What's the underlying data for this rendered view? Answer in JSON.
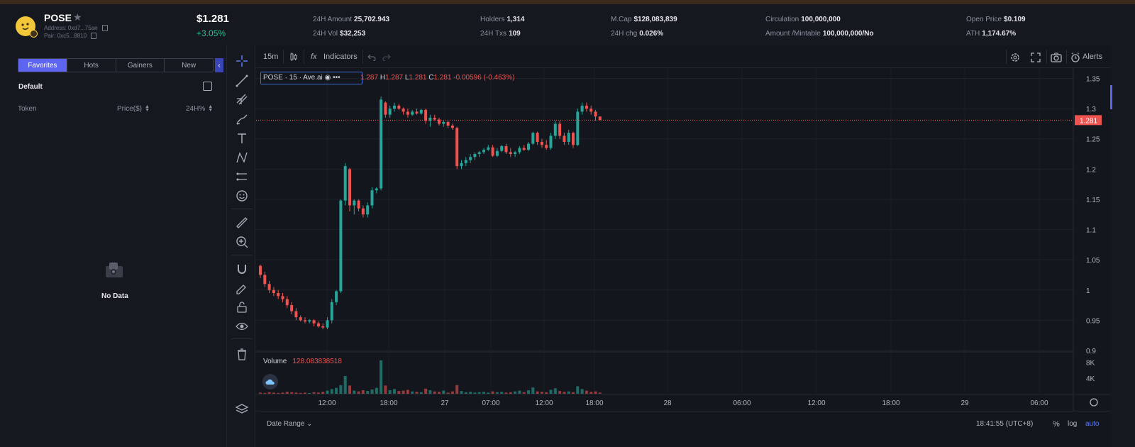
{
  "token": {
    "symbol": "POSE",
    "address": "Address: 0xd7...75ae",
    "pair": "Pair: 0xc5...8810",
    "price": "$1.281",
    "change": "+3.05%"
  },
  "stats": {
    "amount_24h": {
      "label": "24H Amount",
      "value": "25,702.943"
    },
    "vol_24h": {
      "label": "24H Vol",
      "value": "$32,253"
    },
    "holders": {
      "label": "Holders",
      "value": "1,314"
    },
    "txs_24h": {
      "label": "24H Txs",
      "value": "109"
    },
    "mcap": {
      "label": "M.Cap",
      "value": "$128,083,839"
    },
    "chg_24h": {
      "label": "24H chg",
      "value": "0.026%"
    },
    "circulation": {
      "label": "Circulation",
      "value": "100,000,000"
    },
    "mintable": {
      "label": "Amount /Mintable",
      "value": "100,000,000/No"
    },
    "open_price": {
      "label": "Open Price",
      "value": "$0.109"
    },
    "ath": {
      "label": "ATH",
      "value": "1,174.67%"
    }
  },
  "sidebar": {
    "tabs": [
      {
        "label": "Favorites",
        "active": true
      },
      {
        "label": "Hots",
        "active": false
      },
      {
        "label": "Gainers",
        "active": false
      },
      {
        "label": "New",
        "active": false
      }
    ],
    "group_title": "Default",
    "columns": {
      "token": "Token",
      "price": "Price($)",
      "change": "24H%"
    },
    "empty_text": "No Data"
  },
  "chart_toolbar": {
    "interval": "15m",
    "indicators": "Indicators",
    "alerts": "Alerts"
  },
  "legend": {
    "symbol": "POSE",
    "interval": "15",
    "source": "Ave.ai",
    "open_label": "O",
    "open_value": "1.287",
    "high_label": "H",
    "high_value": "1.287",
    "low_label": "L",
    "low_value": "1.281",
    "close_label": "C",
    "close_value": "1.281",
    "change": "-0.00596 (-0.463%)"
  },
  "volume": {
    "label": "Volume",
    "value": "128.083838518"
  },
  "bottom": {
    "date_range": "Date Range",
    "clock": "18:41:55 (UTC+8)",
    "percent": "%",
    "log": "log",
    "auto": "auto"
  },
  "colors": {
    "up": "#26a69a",
    "down": "#ef5350",
    "accent": "#5d64f0",
    "background": "#14161d"
  },
  "chart_data": {
    "type": "candlestick",
    "current_price": 1.281,
    "y_ticks": [
      0.9,
      0.95,
      1,
      1.05,
      1.1,
      1.15,
      1.2,
      1.25,
      1.3,
      1.35
    ],
    "y_tick_labels": [
      "0.9",
      "0.95",
      "1",
      "1.05",
      "1.1",
      "1.15",
      "1.2",
      "1.25",
      "1.3",
      "1.35"
    ],
    "ylim": [
      0.9,
      1.36
    ],
    "x_tick_labels": [
      "12:00",
      "18:00",
      "27",
      "07:00",
      "12:00",
      "18:00",
      "28",
      "06:00",
      "12:00",
      "18:00",
      "29",
      "06:00"
    ],
    "volume_tick_labels": [
      "8K",
      "4K"
    ],
    "grid": true,
    "candles": [
      [
        1.04,
        1.042,
        1.02,
        1.025
      ],
      [
        1.025,
        1.03,
        1.005,
        1.01
      ],
      [
        1.01,
        1.015,
        0.995,
        1.0
      ],
      [
        1.0,
        1.005,
        0.99,
        0.995
      ],
      [
        0.995,
        1.0,
        0.985,
        0.99
      ],
      [
        0.99,
        0.995,
        0.98,
        0.985
      ],
      [
        0.985,
        0.99,
        0.97,
        0.975
      ],
      [
        0.975,
        0.98,
        0.96,
        0.965
      ],
      [
        0.965,
        0.97,
        0.95,
        0.955
      ],
      [
        0.955,
        0.958,
        0.948,
        0.95
      ],
      [
        0.95,
        0.955,
        0.945,
        0.948
      ],
      [
        0.948,
        0.952,
        0.945,
        0.95
      ],
      [
        0.95,
        0.952,
        0.94,
        0.945
      ],
      [
        0.945,
        0.948,
        0.938,
        0.94
      ],
      [
        0.94,
        0.945,
        0.935,
        0.938
      ],
      [
        0.938,
        0.955,
        0.935,
        0.95
      ],
      [
        0.95,
        0.985,
        0.945,
        0.98
      ],
      [
        0.98,
        1.0,
        0.975,
        0.998
      ],
      [
        0.998,
        1.15,
        0.995,
        1.148
      ],
      [
        1.148,
        1.21,
        1.14,
        1.205
      ],
      [
        1.2,
        1.202,
        1.13,
        1.14
      ],
      [
        1.14,
        1.15,
        1.125,
        1.148
      ],
      [
        1.148,
        1.15,
        1.13,
        1.135
      ],
      [
        1.135,
        1.14,
        1.12,
        1.125
      ],
      [
        1.125,
        1.145,
        1.12,
        1.14
      ],
      [
        1.14,
        1.17,
        1.135,
        1.165
      ],
      [
        1.165,
        1.17,
        1.16,
        1.168
      ],
      [
        1.168,
        1.32,
        1.165,
        1.315
      ],
      [
        1.31,
        1.312,
        1.285,
        1.29
      ],
      [
        1.29,
        1.305,
        1.285,
        1.3
      ],
      [
        1.3,
        1.31,
        1.295,
        1.305
      ],
      [
        1.305,
        1.308,
        1.298,
        1.3
      ],
      [
        1.3,
        1.302,
        1.29,
        1.295
      ],
      [
        1.295,
        1.3,
        1.285,
        1.29
      ],
      [
        1.29,
        1.298,
        1.288,
        1.295
      ],
      [
        1.295,
        1.3,
        1.29,
        1.292
      ],
      [
        1.292,
        1.3,
        1.29,
        1.298
      ],
      [
        1.298,
        1.3,
        1.275,
        1.28
      ],
      [
        1.28,
        1.29,
        1.27,
        1.285
      ],
      [
        1.285,
        1.29,
        1.28,
        1.282
      ],
      [
        1.282,
        1.285,
        1.272,
        1.275
      ],
      [
        1.275,
        1.28,
        1.27,
        1.278
      ],
      [
        1.278,
        1.28,
        1.268,
        1.272
      ],
      [
        1.272,
        1.275,
        1.265,
        1.268
      ],
      [
        1.268,
        1.27,
        1.2,
        1.205
      ],
      [
        1.205,
        1.215,
        1.2,
        1.21
      ],
      [
        1.21,
        1.22,
        1.205,
        1.215
      ],
      [
        1.215,
        1.225,
        1.21,
        1.22
      ],
      [
        1.22,
        1.228,
        1.215,
        1.225
      ],
      [
        1.225,
        1.23,
        1.22,
        1.228
      ],
      [
        1.228,
        1.235,
        1.225,
        1.232
      ],
      [
        1.232,
        1.24,
        1.23,
        1.236
      ],
      [
        1.236,
        1.24,
        1.22,
        1.222
      ],
      [
        1.222,
        1.235,
        1.22,
        1.23
      ],
      [
        1.23,
        1.24,
        1.228,
        1.238
      ],
      [
        1.238,
        1.242,
        1.225,
        1.228
      ],
      [
        1.228,
        1.235,
        1.22,
        1.225
      ],
      [
        1.225,
        1.23,
        1.22,
        1.228
      ],
      [
        1.228,
        1.238,
        1.225,
        1.235
      ],
      [
        1.235,
        1.24,
        1.23,
        1.232
      ],
      [
        1.232,
        1.245,
        1.23,
        1.242
      ],
      [
        1.242,
        1.262,
        1.24,
        1.26
      ],
      [
        1.26,
        1.262,
        1.24,
        1.245
      ],
      [
        1.245,
        1.25,
        1.235,
        1.24
      ],
      [
        1.24,
        1.248,
        1.232,
        1.235
      ],
      [
        1.235,
        1.26,
        1.232,
        1.255
      ],
      [
        1.255,
        1.28,
        1.25,
        1.275
      ],
      [
        1.275,
        1.28,
        1.25,
        1.255
      ],
      [
        1.255,
        1.26,
        1.24,
        1.245
      ],
      [
        1.245,
        1.265,
        1.24,
        1.26
      ],
      [
        1.26,
        1.262,
        1.235,
        1.24
      ],
      [
        1.24,
        1.3,
        1.238,
        1.295
      ],
      [
        1.295,
        1.31,
        1.29,
        1.305
      ],
      [
        1.305,
        1.31,
        1.295,
        1.3
      ],
      [
        1.3,
        1.305,
        1.29,
        1.295
      ],
      [
        1.295,
        1.298,
        1.28,
        1.287
      ],
      [
        1.287,
        1.287,
        1.281,
        1.281
      ]
    ],
    "volumes": [
      0.3,
      0.2,
      0.4,
      0.3,
      0.2,
      0.3,
      0.5,
      0.4,
      0.3,
      0.2,
      0.3,
      0.2,
      0.4,
      0.3,
      0.5,
      0.8,
      1.2,
      1.5,
      2.2,
      4.5,
      2.1,
      0.8,
      0.6,
      0.9,
      0.7,
      1.1,
      1.5,
      8.5,
      2.1,
      0.9,
      1.2,
      0.7,
      0.8,
      1.0,
      0.6,
      0.5,
      0.4,
      1.3,
      0.9,
      0.6,
      0.5,
      0.8,
      0.3,
      0.6,
      2.2,
      0.7,
      0.4,
      0.5,
      0.3,
      0.4,
      0.5,
      0.3,
      0.6,
      0.4,
      0.5,
      0.3,
      0.4,
      0.6,
      0.8,
      0.4,
      0.9,
      1.6,
      0.6,
      0.5,
      0.4,
      1.0,
      1.4,
      0.7,
      0.5,
      0.6,
      0.4,
      1.9,
      1.2,
      0.8,
      0.5,
      0.6,
      0.3
    ],
    "volume_max": 9
  }
}
